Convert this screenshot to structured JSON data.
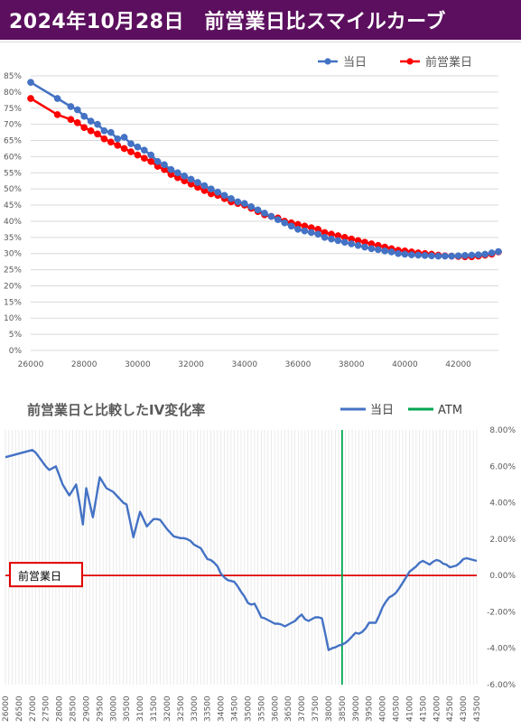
{
  "header": {
    "title": "2024年10月28日　前営業日比スマイルカーブ",
    "background": "#5b0f5e",
    "text_color": "#ffffff"
  },
  "chart_data": [
    {
      "type": "line",
      "x": [
        26000,
        27000,
        27500,
        27750,
        28000,
        28250,
        28500,
        28750,
        29000,
        29250,
        29500,
        29750,
        30000,
        30250,
        30500,
        30750,
        31000,
        31250,
        31500,
        31750,
        32000,
        32250,
        32500,
        32750,
        33000,
        33250,
        33500,
        33750,
        34000,
        34250,
        34500,
        34750,
        35000,
        35250,
        35500,
        35750,
        36000,
        36250,
        36500,
        36750,
        37000,
        37250,
        37500,
        37750,
        38000,
        38250,
        38500,
        38750,
        39000,
        39250,
        39500,
        39750,
        40000,
        40250,
        40500,
        40750,
        41000,
        41250,
        41500,
        41750,
        42000,
        42250,
        42500,
        42750,
        43000,
        43250,
        43500
      ],
      "series": [
        {
          "name": "当日",
          "color": "#4472c4",
          "values": [
            83.0,
            78.0,
            75.5,
            74.5,
            72.5,
            71.0,
            70.0,
            68.0,
            67.5,
            65.5,
            66.0,
            64.0,
            63.0,
            62.0,
            60.5,
            58.5,
            57.5,
            56.0,
            55.0,
            54.0,
            53.0,
            52.0,
            51.0,
            50.0,
            49.0,
            48.0,
            47.0,
            46.0,
            45.5,
            44.5,
            43.5,
            42.5,
            41.5,
            40.5,
            39.5,
            38.5,
            37.5,
            37.0,
            36.5,
            36.0,
            35.0,
            34.5,
            34.0,
            33.5,
            33.0,
            32.5,
            32.0,
            31.5,
            31.2,
            30.8,
            30.5,
            30.0,
            29.8,
            29.6,
            29.5,
            29.4,
            29.3,
            29.2,
            29.2,
            29.2,
            29.3,
            29.4,
            29.5,
            29.6,
            29.8,
            30.2,
            30.6
          ]
        },
        {
          "name": "前営業日",
          "color": "#ff0000",
          "values": [
            78.0,
            73.0,
            71.5,
            70.5,
            69.0,
            68.0,
            67.0,
            65.5,
            64.5,
            63.5,
            62.5,
            61.5,
            60.5,
            59.5,
            58.5,
            57.0,
            56.0,
            54.5,
            53.5,
            52.5,
            51.5,
            50.5,
            49.5,
            48.5,
            48.0,
            47.0,
            46.0,
            45.5,
            45.0,
            44.0,
            43.0,
            42.0,
            41.5,
            41.0,
            40.0,
            39.5,
            39.0,
            38.5,
            38.0,
            37.5,
            36.5,
            36.0,
            35.5,
            35.0,
            34.5,
            34.0,
            33.5,
            33.0,
            32.5,
            32.0,
            31.5,
            31.0,
            30.8,
            30.5,
            30.2,
            30.0,
            29.8,
            29.5,
            29.3,
            29.2,
            29.1,
            29.0,
            29.0,
            29.2,
            29.5,
            29.8,
            30.5
          ]
        }
      ],
      "xlim": [
        26000,
        43500
      ],
      "ylim": [
        0,
        85
      ],
      "xticks": [
        26000,
        28000,
        30000,
        32000,
        34000,
        36000,
        38000,
        40000,
        42000
      ],
      "yticks": [
        "0%",
        "5%",
        "10%",
        "15%",
        "20%",
        "25%",
        "30%",
        "35%",
        "40%",
        "45%",
        "50%",
        "55%",
        "60%",
        "65%",
        "70%",
        "75%",
        "80%",
        "85%"
      ],
      "grid": true,
      "legend_position": "top-right",
      "markers": true
    },
    {
      "type": "line",
      "title": "前営業日と比較したIV変化率",
      "categories": [
        "26000",
        "26500",
        "27000",
        "27500",
        "28000",
        "28500",
        "29000",
        "29500",
        "30000",
        "30500",
        "31000",
        "31500",
        "32000",
        "32500",
        "33000",
        "33500",
        "34000",
        "34500",
        "35000",
        "35500",
        "36000",
        "36500",
        "37000",
        "37500",
        "38000",
        "38500",
        "39000",
        "39500",
        "40000",
        "40500",
        "41000",
        "41500",
        "42000",
        "42500",
        "43000",
        "43500"
      ],
      "series": [
        {
          "name": "当日",
          "color": "#4472c4",
          "x": [
            26000,
            26125,
            26250,
            26375,
            26500,
            26625,
            26750,
            26875,
            27000,
            27125,
            27250,
            27375,
            27500,
            27625,
            27750,
            27875,
            28000,
            28125,
            28250,
            28375,
            28500,
            28625,
            28750,
            28875,
            29000,
            29125,
            29250,
            29375,
            29500,
            29625,
            29750,
            29875,
            30000,
            30125,
            30250,
            30375,
            30500,
            30625,
            30750,
            30875,
            31000,
            31125,
            31250,
            31375,
            31500,
            31625,
            31750,
            31875,
            32000,
            32125,
            32250,
            32375,
            32500,
            32625,
            32750,
            32875,
            33000,
            33125,
            33250,
            33375,
            33500,
            33625,
            33750,
            33875,
            34000,
            34125,
            34250,
            34375,
            34500,
            34625,
            34750,
            34875,
            35000,
            35125,
            35250,
            35375,
            35500,
            35625,
            35750,
            35875,
            36000,
            36125,
            36250,
            36375,
            36500,
            36625,
            36750,
            36875,
            37000,
            37125,
            37250,
            37375,
            37500,
            37625,
            37750,
            37875,
            38000,
            38125,
            38250,
            38375,
            38500,
            38625,
            38750,
            38875,
            39000,
            39125,
            39250,
            39375,
            39500,
            39625,
            39750,
            39875,
            40000,
            40125,
            40250,
            40375,
            40500,
            40625,
            40750,
            40875,
            41000,
            41125,
            41250,
            41375,
            41500,
            41625,
            41750,
            41875,
            42000,
            42125,
            42250,
            42375,
            42500,
            42625,
            42750,
            42875,
            43000,
            43125,
            43250,
            43375,
            43500
          ],
          "values": [
            6.5,
            6.55,
            6.6,
            6.65,
            6.7,
            6.75,
            6.8,
            6.85,
            6.9,
            6.75,
            6.5,
            6.25,
            6.0,
            5.8,
            5.9,
            6.0,
            5.5,
            5.0,
            4.7,
            4.4,
            4.7,
            5.0,
            4.0,
            2.8,
            4.8,
            4.0,
            3.2,
            4.3,
            5.4,
            5.1,
            4.8,
            4.7,
            4.6,
            4.4,
            4.2,
            4.0,
            3.9,
            3.0,
            2.1,
            2.8,
            3.5,
            3.1,
            2.7,
            2.9,
            3.1,
            3.1,
            3.05,
            2.8,
            2.55,
            2.35,
            2.15,
            2.1,
            2.05,
            2.05,
            2.0,
            1.9,
            1.7,
            1.6,
            1.5,
            1.2,
            0.9,
            0.85,
            0.7,
            0.5,
            0.1,
            -0.1,
            -0.25,
            -0.3,
            -0.35,
            -0.6,
            -0.9,
            -1.15,
            -1.5,
            -1.6,
            -1.55,
            -1.9,
            -2.3,
            -2.35,
            -2.45,
            -2.55,
            -2.65,
            -2.65,
            -2.7,
            -2.8,
            -2.7,
            -2.6,
            -2.5,
            -2.3,
            -2.15,
            -2.4,
            -2.5,
            -2.4,
            -2.3,
            -2.3,
            -2.35,
            -3.2,
            -4.1,
            -4.0,
            -3.95,
            -3.85,
            -3.8,
            -3.7,
            -3.55,
            -3.35,
            -3.15,
            -3.2,
            -3.1,
            -2.9,
            -2.6,
            -2.6,
            -2.6,
            -2.2,
            -1.75,
            -1.45,
            -1.2,
            -1.1,
            -0.95,
            -0.7,
            -0.4,
            -0.1,
            0.2,
            0.35,
            0.5,
            0.7,
            0.8,
            0.7,
            0.6,
            0.75,
            0.85,
            0.8,
            0.65,
            0.6,
            0.45,
            0.5,
            0.55,
            0.7,
            0.9,
            0.95,
            0.9,
            0.85,
            0.8
          ]
        }
      ],
      "legend": [
        "当日",
        "ATM"
      ],
      "atm_strike": 38500,
      "atm_color": "#00a651",
      "zero_line_color": "#e00000",
      "zero_line_label": "前営業日",
      "ylim": [
        -6,
        8
      ],
      "yticks": [
        "-6.00%",
        "-4.00%",
        "-2.00%",
        "0.00%",
        "2.00%",
        "4.00%",
        "6.00%",
        "8.00%"
      ],
      "legend_position": "top-right",
      "grid": true
    }
  ]
}
